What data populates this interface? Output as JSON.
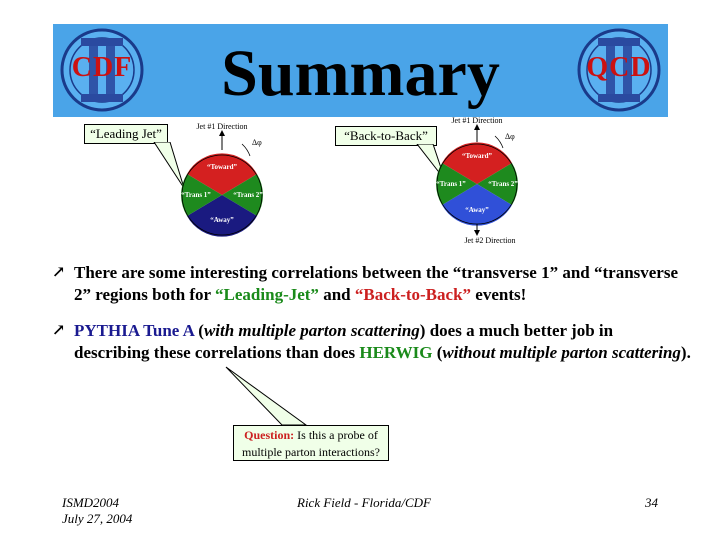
{
  "header": {
    "title": "Summary",
    "logo_left_text": "CDF",
    "logo_right_text": "QCD"
  },
  "diagrams": {
    "leading_jet": {
      "callout": "“Leading Jet”",
      "top_label": "Jet #1 Direction",
      "angle_label": "Δφ",
      "regions": [
        "“Toward”",
        "“Trans 1”",
        "“Trans 2”",
        "“Away”"
      ]
    },
    "back_to_back": {
      "callout": "“Back-to-Back”",
      "top_label": "Jet #1 Direction",
      "bottom_label": "Jet #2 Direction",
      "angle_label": "Δφ",
      "regions": [
        "“Toward”",
        "“Trans 1”",
        "“Trans 2”",
        "“Away”"
      ]
    },
    "colors": {
      "toward": "#d42020",
      "trans": "#1e8a1e",
      "away": "#1a1a80",
      "away_btb": "#3050d8"
    }
  },
  "bullets": {
    "b1": {
      "t1": "There are some interesting correlations between the “transverse 1” and “transverse 2” regions both for ",
      "t2": "“Leading-Jet”",
      "t3": " and ",
      "t4": "“Back-to-Back”",
      "t5": " events!"
    },
    "b2": {
      "t1": "PYTHIA Tune A",
      "t2": " (",
      "t3": "with multiple parton scattering",
      "t4": ") does a much better job in describing these correlations than does ",
      "t5": "HERWIG",
      "t6": " (",
      "t7": "without multiple parton scattering",
      "t8": ")."
    }
  },
  "question": {
    "label": "Question:",
    "text": " Is this a probe of multiple parton interactions?"
  },
  "footer": {
    "conference": "ISMD2004",
    "date": "July 27, 2004",
    "author": "Rick Field - Florida/CDF",
    "page": "34"
  }
}
